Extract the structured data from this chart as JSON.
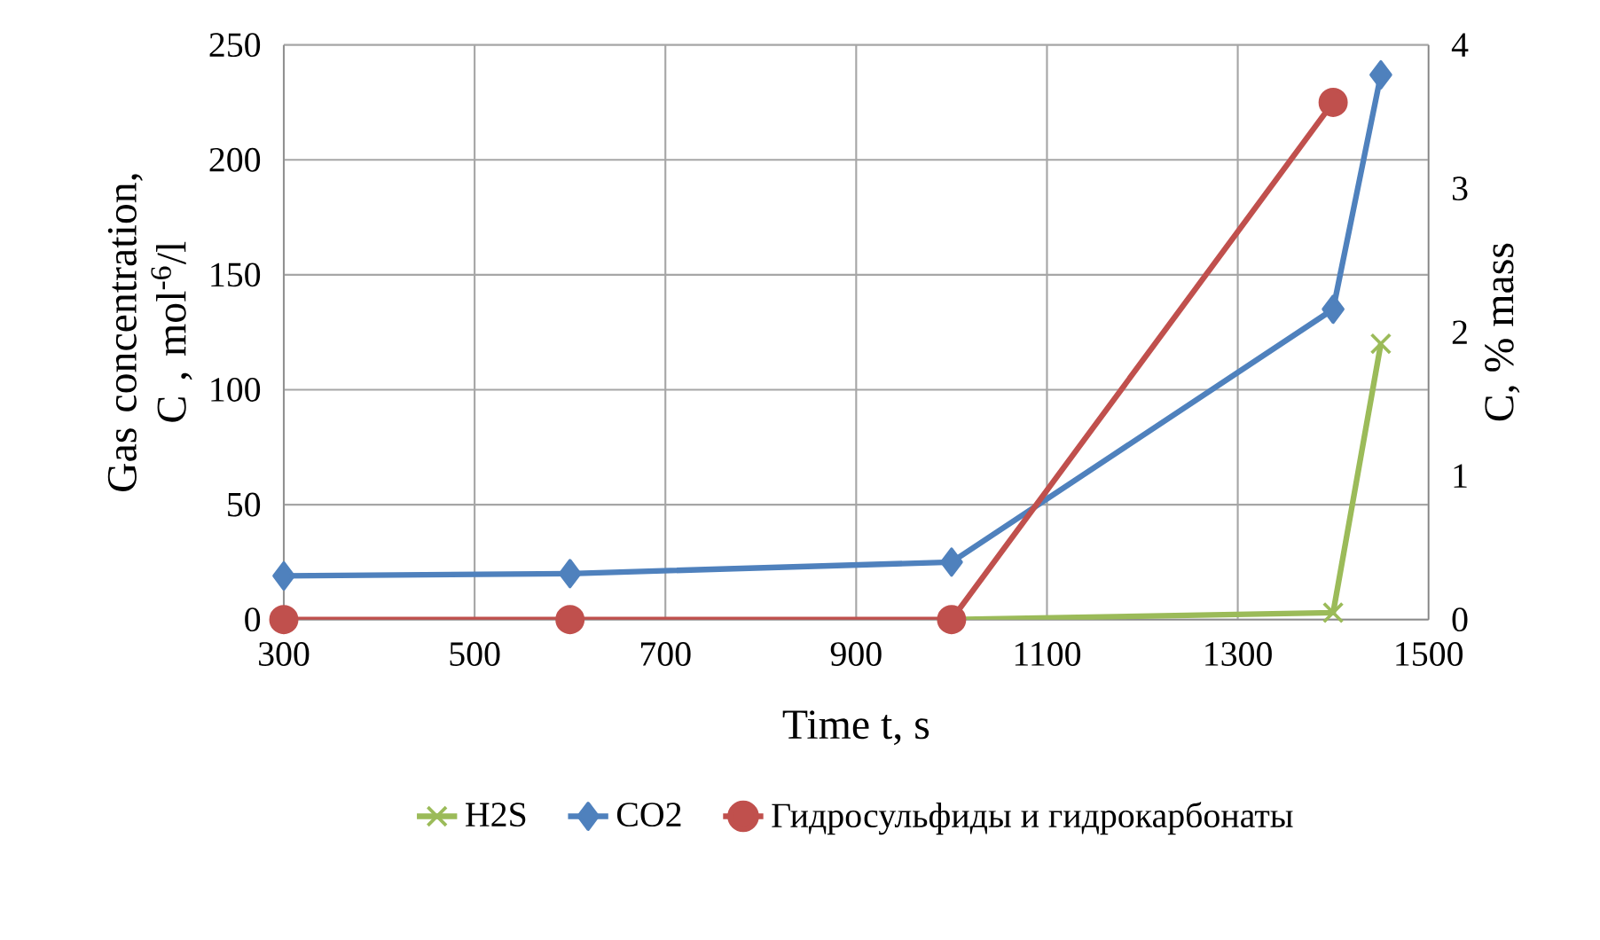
{
  "chart_data": {
    "type": "line",
    "xlabel": "Time t, s",
    "ylabel": "Gas concentration, C , mol$^{-6}$/l",
    "y2label": "C, % mass",
    "xlim": [
      300,
      1500
    ],
    "xticks": [
      300,
      500,
      700,
      900,
      1100,
      1300,
      1500
    ],
    "ylim": [
      0,
      250
    ],
    "yticks": [
      0,
      50,
      100,
      150,
      200,
      250
    ],
    "y2lim": [
      0,
      4
    ],
    "y2ticks": [
      0,
      1,
      2,
      3,
      4
    ],
    "grid": true,
    "legend": "bottom",
    "series": [
      {
        "name": "H2S",
        "color": "#9bbb59",
        "marker": "cross",
        "x": [
          1000,
          1400,
          1450
        ],
        "values": [
          0,
          3,
          120
        ]
      },
      {
        "name": "CO2",
        "color": "#4f81bd",
        "marker": "diamond",
        "x": [
          300,
          600,
          1000,
          1400,
          1450
        ],
        "values": [
          19,
          20,
          25,
          135,
          237
        ]
      },
      {
        "name": "Гидросульфиды и гидрокарбонаты",
        "color": "#c0504d",
        "marker": "circle",
        "axis": "y2",
        "x": [
          300,
          600,
          1000,
          1400
        ],
        "values": [
          0,
          0,
          0,
          3.6
        ]
      }
    ]
  }
}
